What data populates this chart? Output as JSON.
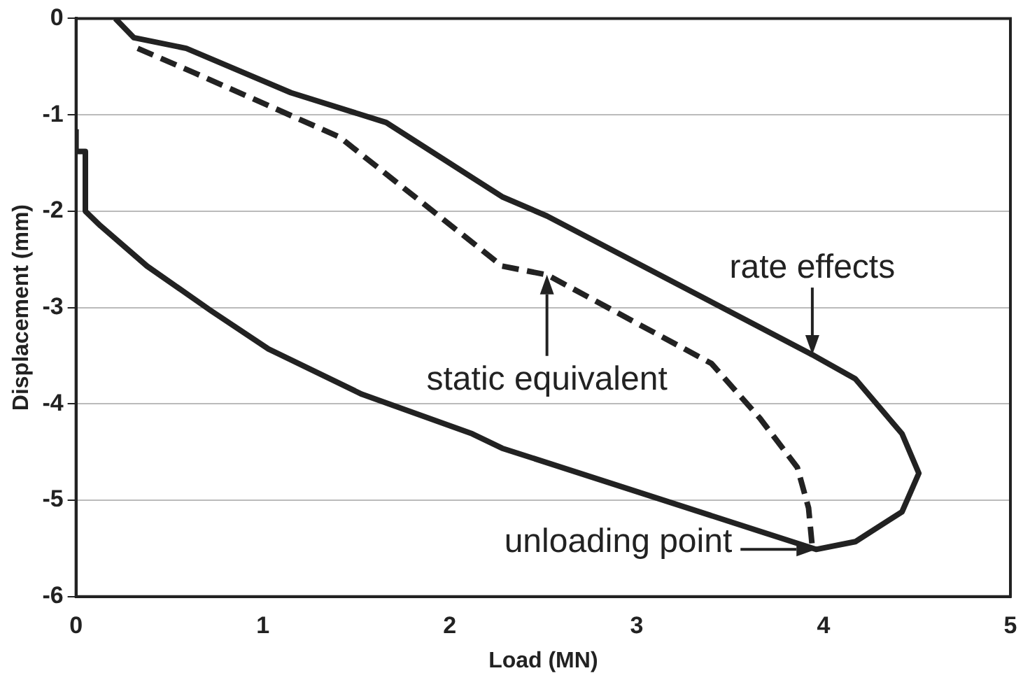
{
  "chart_data": {
    "type": "line",
    "xlabel": "Load (MN)",
    "ylabel": "Displacement (mm)",
    "xlim": [
      0,
      5
    ],
    "xticks": [
      0,
      1,
      2,
      3,
      4,
      5
    ],
    "ylim": [
      -6,
      0
    ],
    "yticks": [
      -6,
      -5,
      -4,
      -3,
      -2,
      -1,
      0
    ],
    "grid": "y",
    "legend": false,
    "marker": "none",
    "series": [
      {
        "color": "#222222",
        "line_style": "solid",
        "x": [
          0.21,
          0.31,
          0.59,
          1.15,
          1.66,
          2.28,
          2.52,
          3.94,
          4.17,
          4.42,
          4.51,
          4.42,
          4.17,
          3.96,
          2.28,
          2.12,
          1.53,
          1.03,
          0.72,
          0.38,
          0.13,
          0.05,
          0.05,
          0,
          0
        ],
        "values": [
          0,
          -0.2,
          -0.31,
          -0.77,
          -1.08,
          -1.85,
          -2.05,
          -3.49,
          -3.74,
          -4.31,
          -4.72,
          -5.12,
          -5.43,
          -5.51,
          -4.46,
          -4.31,
          -3.9,
          -3.43,
          -3.03,
          -2.57,
          -2.15,
          -2,
          -1.38,
          -1.38,
          -1.15
        ]
      },
      {
        "color": "#222222",
        "line_style": "dashed",
        "x": [
          0.33,
          0.64,
          1.41,
          2.28,
          2.52,
          3.4,
          3.66,
          3.86,
          3.92,
          3.94
        ],
        "values": [
          -0.31,
          -0.57,
          -1.23,
          -2.57,
          -2.66,
          -3.58,
          -4.15,
          -4.66,
          -5.08,
          -5.49
        ]
      }
    ],
    "annotations": [
      {
        "text": "static equivalent",
        "x": 2.52,
        "y": -2.66
      },
      {
        "text": "rate effects",
        "x": 3.94,
        "y": -3.49
      },
      {
        "text": "unloading point",
        "x": 3.96,
        "y": -5.51
      }
    ]
  }
}
